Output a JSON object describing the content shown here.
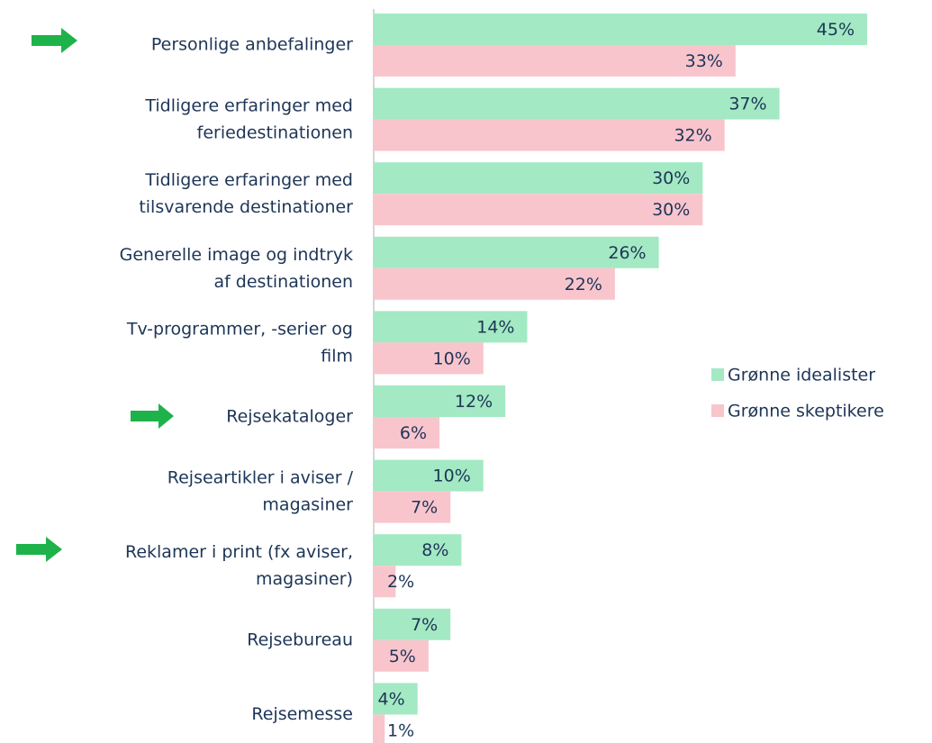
{
  "chart_data": {
    "type": "barh",
    "categories": [
      "Personlige anbefalinger",
      "Tidligere erfaringer med\nferiedestinationen",
      "Tidligere erfaringer med\ntilsvarende destinationer",
      "Generelle image og indtryk\naf destinationen",
      "Tv-programmer, -serier og\nfilm",
      "Rejsekataloger",
      "Rejseartikler i aviser /\nmagasiner",
      "Reklamer i print (fx aviser,\nmagasiner)",
      "Rejsebureau",
      "Rejsemesse"
    ],
    "series": [
      {
        "name": "Grønne idealister",
        "color": "#a3e9c3",
        "values": [
          45,
          37,
          30,
          26,
          14,
          12,
          10,
          8,
          7,
          4
        ],
        "value_labels": [
          "45%",
          "37%",
          "30%",
          "26%",
          "14%",
          "12%",
          "10%",
          "8%",
          "7%",
          "4%"
        ]
      },
      {
        "name": "Grønne skeptikere",
        "color": "#f9c5cd",
        "values": [
          33,
          32,
          30,
          22,
          10,
          6,
          7,
          2,
          5,
          1
        ],
        "value_labels": [
          "33%",
          "32%",
          "30%",
          "22%",
          "10%",
          "6%",
          "7%",
          "2%",
          "5%",
          "1%"
        ]
      }
    ],
    "xlim": [
      0,
      45
    ]
  }
}
